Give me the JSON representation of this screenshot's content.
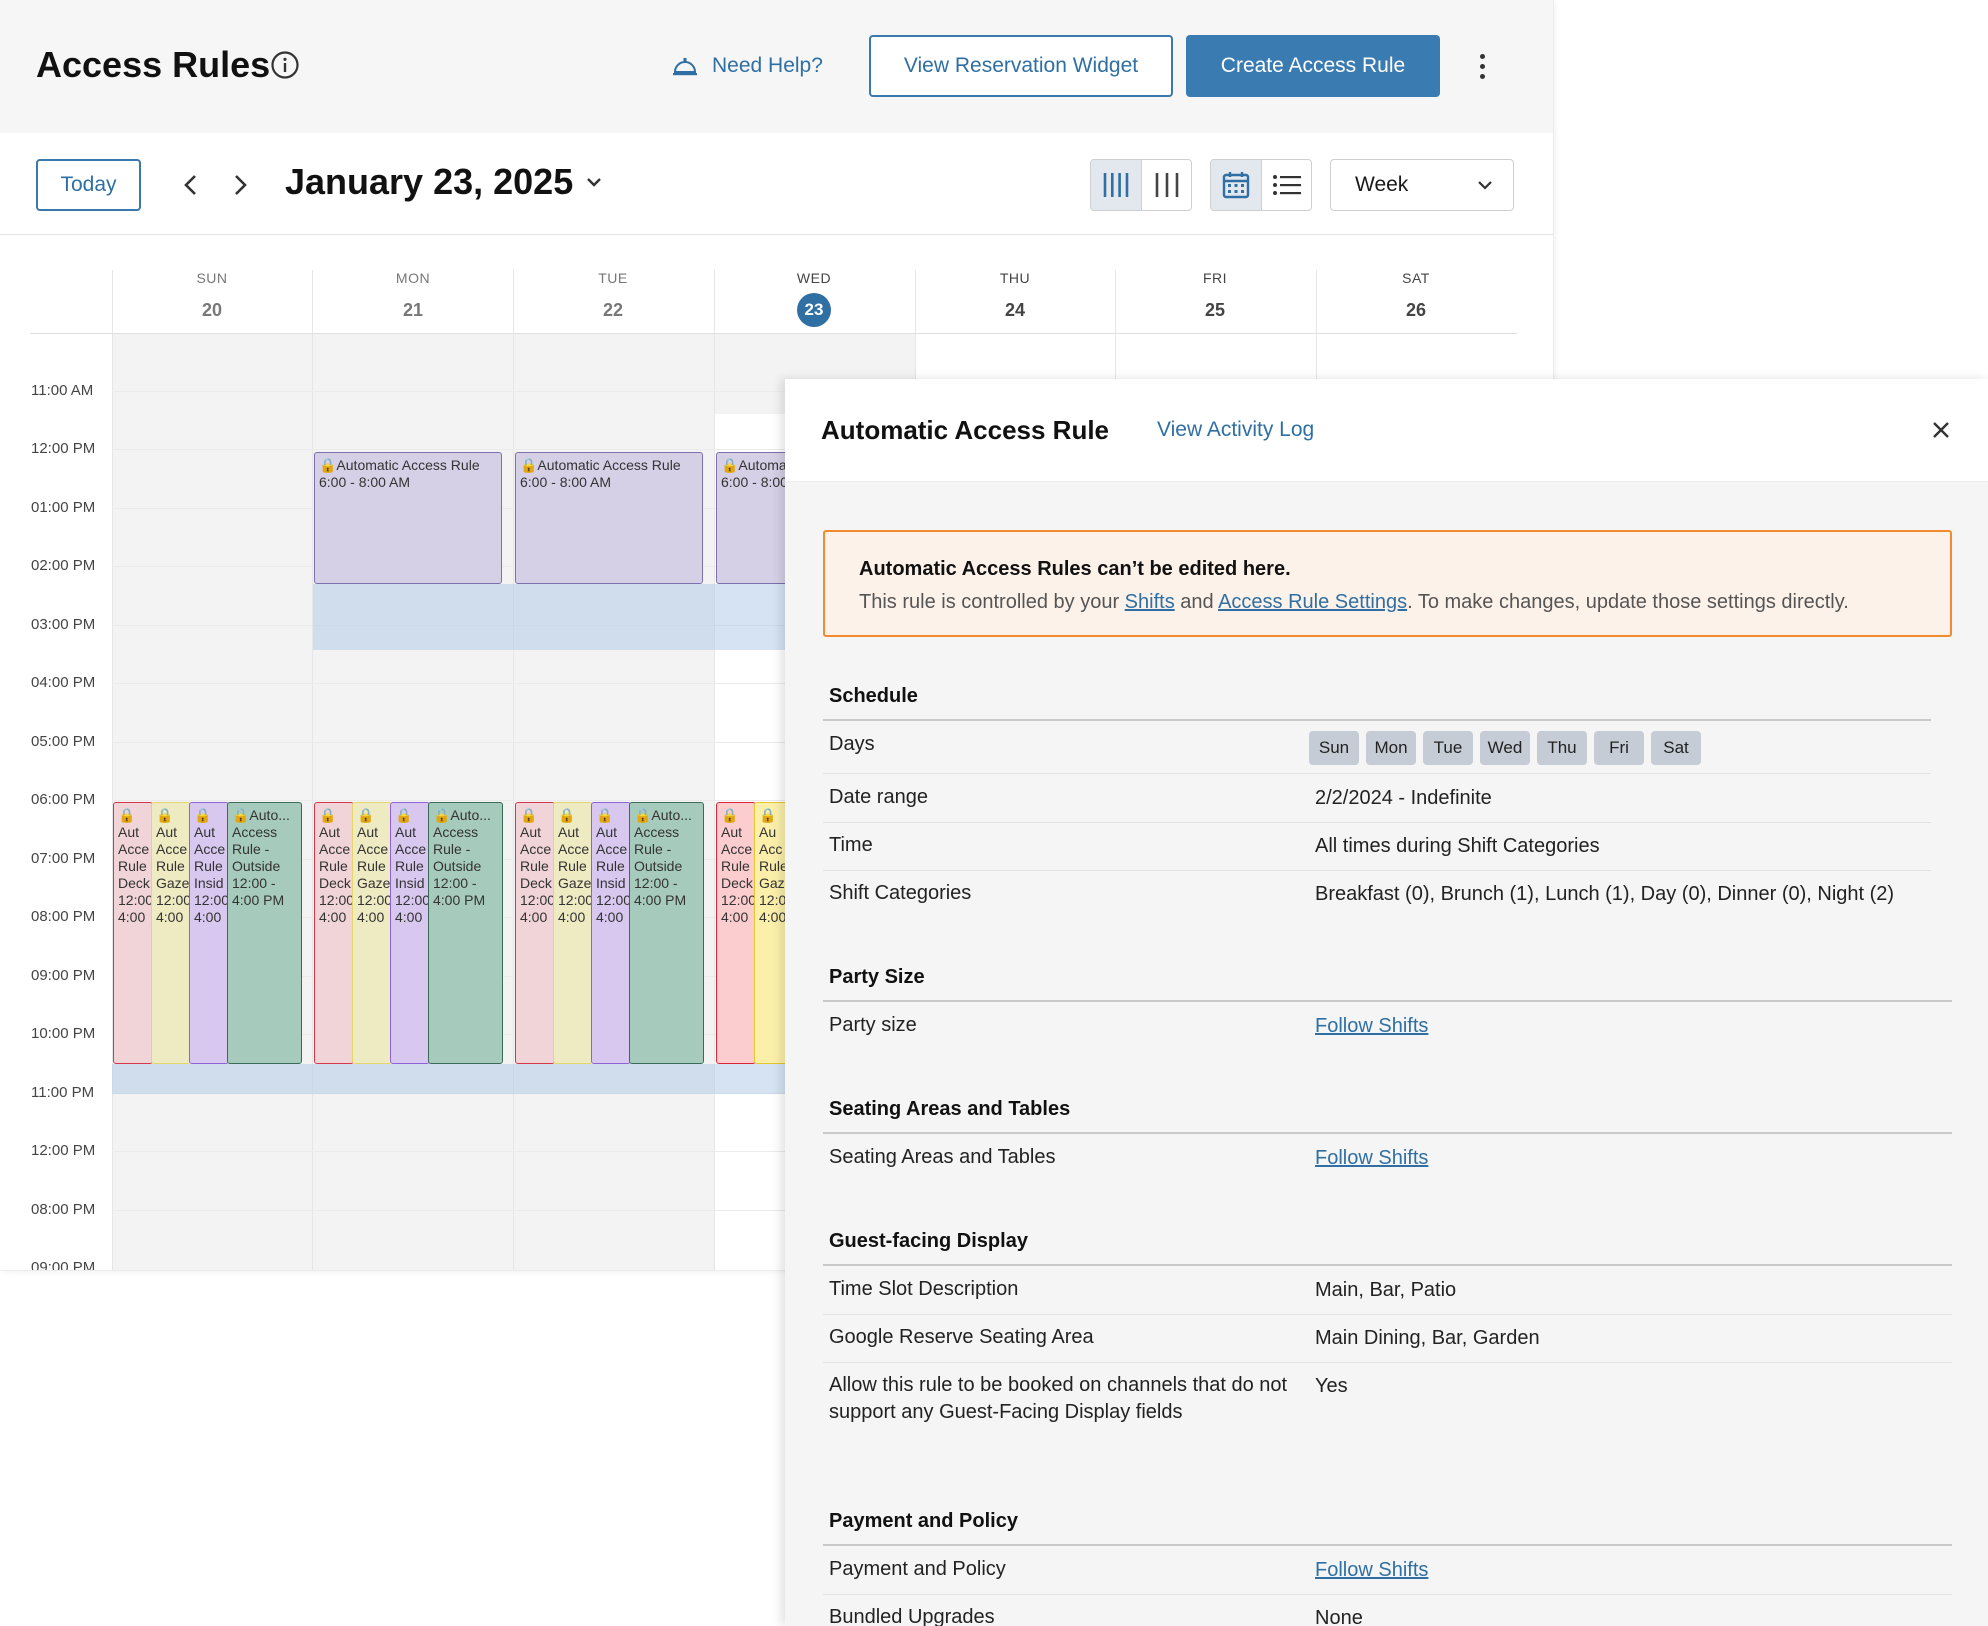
{
  "header": {
    "title": "Access Rules",
    "help_label": "Need Help?",
    "view_widget_label": "View Reservation Widget",
    "create_label": "Create Access Rule"
  },
  "toolbar": {
    "today_label": "Today",
    "date": "January 23, 2025",
    "view_select": "Week"
  },
  "calendar": {
    "days": [
      {
        "name": "SUN",
        "num": "20"
      },
      {
        "name": "MON",
        "num": "21"
      },
      {
        "name": "TUE",
        "num": "22"
      },
      {
        "name": "WED",
        "num": "23"
      },
      {
        "name": "THU",
        "num": "24"
      },
      {
        "name": "FRI",
        "num": "25"
      },
      {
        "name": "SAT",
        "num": "26"
      }
    ],
    "times": [
      "11:00 AM",
      "12:00 PM",
      "01:00 PM",
      "02:00 PM",
      "03:00 PM",
      "04:00 PM",
      "05:00 PM",
      "06:00 PM",
      "07:00 PM",
      "08:00 PM",
      "09:00 PM",
      "10:00 PM",
      "11:00 PM",
      "12:00 PM",
      "08:00 PM",
      "09:00 PM"
    ],
    "events": {
      "auto_rule": "🔒Automatic Access Rule\n6:00 - 8:00 AM",
      "auto_rule_wed": "🔒Automa\n6:00 - 8:00",
      "deck": "🔒Aut\nAcce\nRule\nDeck\n12:00\n4:00",
      "gazebo": "🔒Aut\nAcce\nRule\nGaze\n12:00\n4:00",
      "inside": "🔒Aut\nAcce\nRule\nInsid\n12:00\n4:00",
      "outside": "🔒Auto...\nAccess\nRule -\nOutside\n12:00 -\n4:00 PM",
      "deck_wed": "🔒Aut\nAcce\nRule\nDeck\n12:00\n4:00",
      "gazebo_wed": "🔒Au\nAcc\nRule\nGaz\n12:0\n4:00"
    }
  },
  "panel": {
    "title": "Automatic Access Rule",
    "activity_link": "View Activity Log",
    "alert": {
      "title": "Automatic Access Rules can’t be edited here.",
      "prefix": "This rule is controlled by your ",
      "link1": "Shifts",
      "middle": " and ",
      "link2": "Access Rule Settings",
      "suffix": ". To make changes, update those settings directly."
    },
    "schedule": {
      "title": "Schedule",
      "days_label": "Days",
      "days": [
        "Sun",
        "Mon",
        "Tue",
        "Wed",
        "Thu",
        "Fri",
        "Sat"
      ],
      "date_range_label": "Date range",
      "date_range": "2/2/2024 - Indefinite",
      "time_label": "Time",
      "time": "All times during Shift Categories",
      "shift_label": "Shift Categories",
      "shift": "Breakfast (0), Brunch (1), Lunch (1), Day (0), Dinner (0), Night (2)"
    },
    "party": {
      "title": "Party Size",
      "label": "Party size",
      "value": "Follow Shifts"
    },
    "seating": {
      "title": "Seating Areas and Tables",
      "label": "Seating Areas and Tables",
      "value": "Follow Shifts"
    },
    "guest": {
      "title": "Guest-facing Display",
      "desc_label": "Time Slot Description",
      "desc": "Main, Bar, Patio",
      "google_label": "Google Reserve Seating Area",
      "google": "Main Dining, Bar, Garden",
      "allow_label": "Allow this rule to be booked on channels that do not support any Guest-Facing Display fields",
      "allow": "Yes"
    },
    "payment": {
      "title": "Payment and Policy",
      "label": "Payment and Policy",
      "value": "Follow Shifts",
      "upgrades_label": "Bundled Upgrades",
      "upgrades": "None"
    }
  },
  "colors": {
    "accent": "#3a7bb2",
    "alert_border": "#f28a2e",
    "today_badge": "#2f6fa3"
  }
}
